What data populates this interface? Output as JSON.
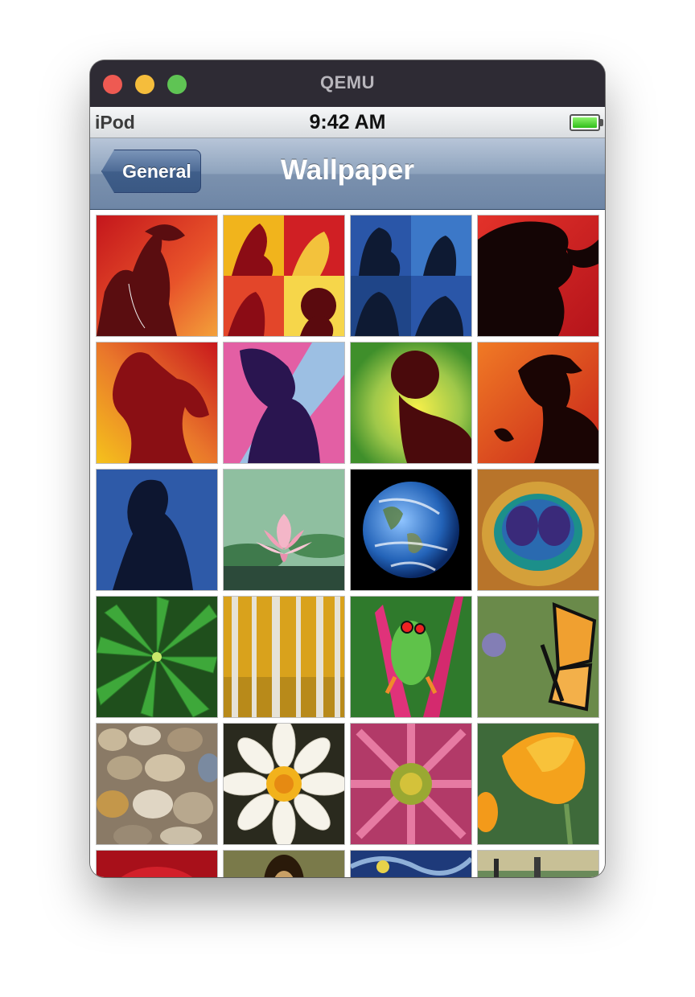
{
  "window": {
    "title": "QEMU"
  },
  "status_bar": {
    "carrier": "iPod",
    "time": "9:42 AM",
    "battery_level": 1.0
  },
  "nav_bar": {
    "back_label": "General",
    "title": "Wallpaper"
  },
  "wallpapers": [
    {
      "name": "silhouette-red-orange",
      "icon": "ipod-silhouette-icon"
    },
    {
      "name": "silhouette-collage-yellow",
      "icon": "ipod-silhouette-icon"
    },
    {
      "name": "silhouette-collage-blue",
      "icon": "ipod-silhouette-icon"
    },
    {
      "name": "silhouette-red-curly-hair",
      "icon": "ipod-silhouette-icon"
    },
    {
      "name": "silhouette-dancer-orange",
      "icon": "ipod-silhouette-icon"
    },
    {
      "name": "silhouette-pink-blue",
      "icon": "ipod-silhouette-icon"
    },
    {
      "name": "silhouette-green-afro",
      "icon": "ipod-silhouette-icon"
    },
    {
      "name": "silhouette-red-cap",
      "icon": "ipod-silhouette-icon"
    },
    {
      "name": "silhouette-blue",
      "icon": "ipod-silhouette-icon"
    },
    {
      "name": "pink-water-lily",
      "icon": "flower-icon"
    },
    {
      "name": "earth",
      "icon": "globe-icon"
    },
    {
      "name": "peacock-feather",
      "icon": "feather-icon"
    },
    {
      "name": "green-leaves",
      "icon": "leaf-icon"
    },
    {
      "name": "aspen-trees",
      "icon": "tree-icon"
    },
    {
      "name": "red-eyed-tree-frog",
      "icon": "frog-icon"
    },
    {
      "name": "monarch-butterfly",
      "icon": "butterfly-icon"
    },
    {
      "name": "pebbles",
      "icon": "stone-icon"
    },
    {
      "name": "white-flower",
      "icon": "flower-icon"
    },
    {
      "name": "pink-daisy",
      "icon": "flower-icon"
    },
    {
      "name": "orange-poppy",
      "icon": "flower-icon"
    },
    {
      "name": "red-rose",
      "icon": "flower-icon"
    },
    {
      "name": "mona-lisa",
      "icon": "painting-icon"
    },
    {
      "name": "starry-night",
      "icon": "painting-icon"
    },
    {
      "name": "sunday-afternoon",
      "icon": "painting-icon"
    }
  ]
}
